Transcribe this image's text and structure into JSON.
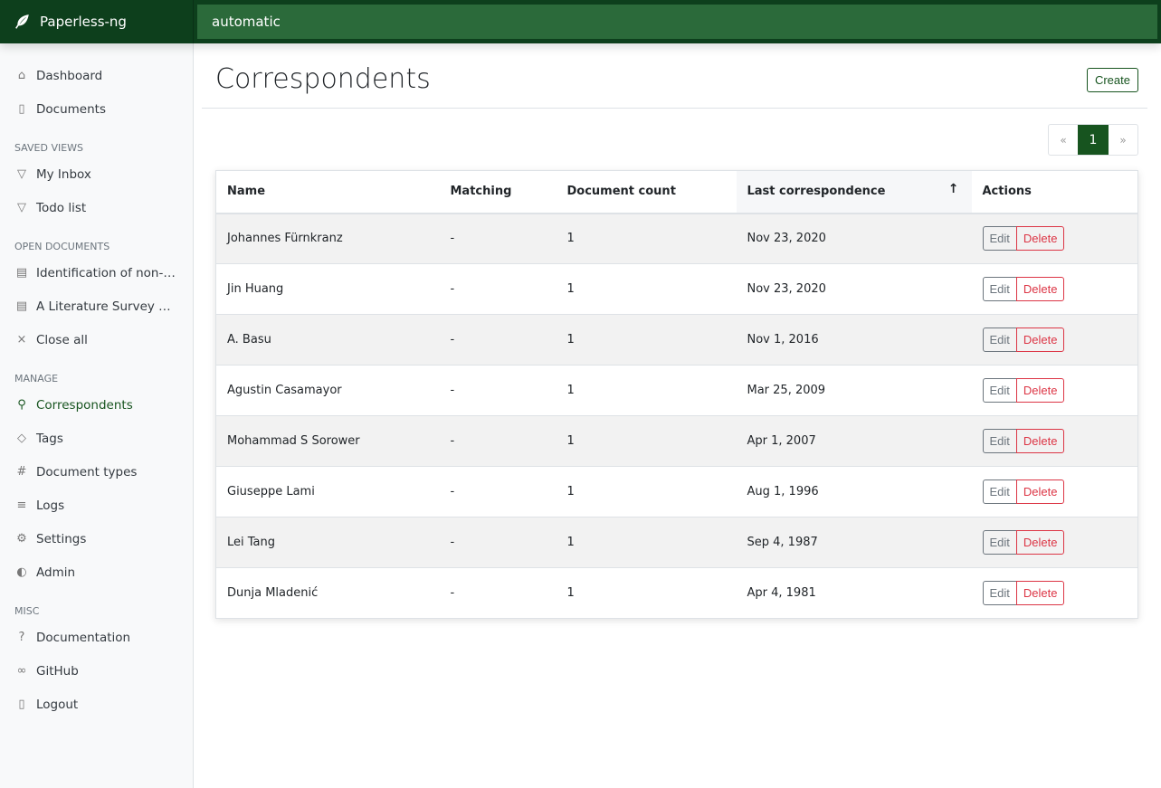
{
  "app": {
    "title": "Paperless-ng",
    "search_value": "automatic"
  },
  "sidebar": {
    "main": [
      {
        "label": "Dashboard",
        "icon": "house-icon"
      },
      {
        "label": "Documents",
        "icon": "files-icon"
      }
    ],
    "saved_views_title": "SAVED VIEWS",
    "saved_views": [
      {
        "label": "My Inbox"
      },
      {
        "label": "Todo list"
      }
    ],
    "open_docs_title": "OPEN DOCUMENTS",
    "open_docs": [
      {
        "label": "Identification of non-fu..."
      },
      {
        "label": "A Literature Survey on ..."
      }
    ],
    "close_all": "Close all",
    "manage_title": "MANAGE",
    "manage": [
      {
        "label": "Correspondents"
      },
      {
        "label": "Tags"
      },
      {
        "label": "Document types"
      },
      {
        "label": "Logs"
      },
      {
        "label": "Settings"
      },
      {
        "label": "Admin"
      }
    ],
    "misc_title": "MISC",
    "misc": [
      {
        "label": "Documentation"
      },
      {
        "label": "GitHub"
      },
      {
        "label": "Logout"
      }
    ]
  },
  "page": {
    "title": "Correspondents",
    "create_label": "Create"
  },
  "pagination": {
    "prev": "«",
    "current": "1",
    "next": "»"
  },
  "table": {
    "headers": [
      "Name",
      "Matching",
      "Document count",
      "Last correspondence",
      "Actions"
    ],
    "sort_indicator": "↑",
    "edit_label": "Edit",
    "delete_label": "Delete",
    "rows": [
      {
        "name": "Johannes Fürnkranz",
        "matching": "-",
        "count": "1",
        "last": "Nov 23, 2020"
      },
      {
        "name": "Jin Huang",
        "matching": "-",
        "count": "1",
        "last": "Nov 23, 2020"
      },
      {
        "name": "A. Basu",
        "matching": "-",
        "count": "1",
        "last": "Nov 1, 2016"
      },
      {
        "name": "Agustin Casamayor",
        "matching": "-",
        "count": "1",
        "last": "Mar 25, 2009"
      },
      {
        "name": "Mohammad S Sorower",
        "matching": "-",
        "count": "1",
        "last": "Apr 1, 2007"
      },
      {
        "name": "Giuseppe Lami",
        "matching": "-",
        "count": "1",
        "last": "Aug 1, 1996"
      },
      {
        "name": "Lei Tang",
        "matching": "-",
        "count": "1",
        "last": "Sep 4, 1987"
      },
      {
        "name": "Dunja Mladenić",
        "matching": "-",
        "count": "1",
        "last": "Apr 4, 1981"
      }
    ]
  },
  "colors": {
    "brand": "#0d3f1c",
    "accent": "#17541f",
    "danger": "#dc3545"
  }
}
